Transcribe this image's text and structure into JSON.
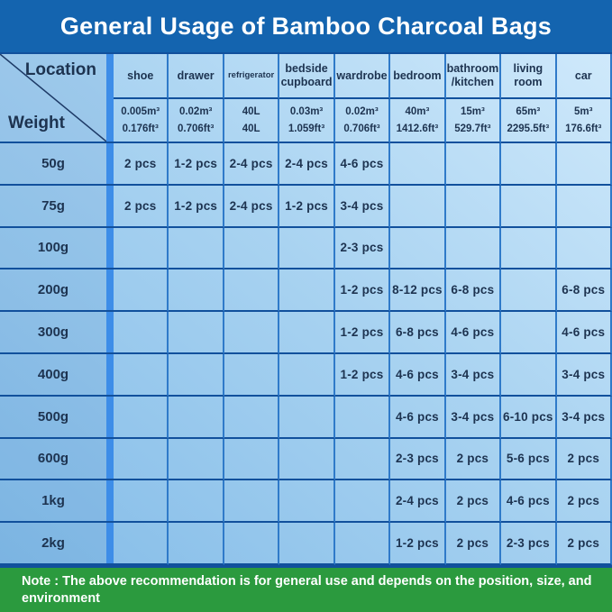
{
  "title_bar": {
    "title": "General Usage of Bamboo Charcoal Bags"
  },
  "chart_data": {
    "type": "table",
    "title": "General Usage of Bamboo Charcoal Bags",
    "corner": {
      "top_label": "Location",
      "bottom_label": "Weight"
    },
    "location_columns": [
      {
        "name": "shoe",
        "volume_metric": "0.005m³",
        "volume_imperial": "0.176ft³"
      },
      {
        "name": "drawer",
        "volume_metric": "0.02m³",
        "volume_imperial": "0.706ft³"
      },
      {
        "name": "refrigerator",
        "volume_metric": "40L",
        "volume_imperial": "40L"
      },
      {
        "name": "bedside cupboard",
        "volume_metric": "0.03m³",
        "volume_imperial": "1.059ft³"
      },
      {
        "name": "wardrobe",
        "volume_metric": "0.02m³",
        "volume_imperial": "0.706ft³"
      },
      {
        "name": "bedroom",
        "volume_metric": "40m³",
        "volume_imperial": "1412.6ft³"
      },
      {
        "name": "bathroom /kitchen",
        "volume_metric": "15m³",
        "volume_imperial": "529.7ft³"
      },
      {
        "name": "living room",
        "volume_metric": "65m³",
        "volume_imperial": "2295.5ft³"
      },
      {
        "name": "car",
        "volume_metric": "5m³",
        "volume_imperial": "176.6ft³"
      }
    ],
    "weight_rows": [
      {
        "weight": "50g",
        "cells": [
          "2 pcs",
          "1-2 pcs",
          "2-4 pcs",
          "2-4 pcs",
          "4-6 pcs",
          "",
          "",
          "",
          ""
        ]
      },
      {
        "weight": "75g",
        "cells": [
          "2 pcs",
          "1-2 pcs",
          "2-4 pcs",
          "1-2 pcs",
          "3-4 pcs",
          "",
          "",
          "",
          ""
        ]
      },
      {
        "weight": "100g",
        "cells": [
          "",
          "",
          "",
          "",
          "2-3 pcs",
          "",
          "",
          "",
          ""
        ]
      },
      {
        "weight": "200g",
        "cells": [
          "",
          "",
          "",
          "",
          "1-2 pcs",
          "8-12 pcs",
          "6-8 pcs",
          "",
          "6-8 pcs"
        ]
      },
      {
        "weight": "300g",
        "cells": [
          "",
          "",
          "",
          "",
          "1-2 pcs",
          "6-8 pcs",
          "4-6 pcs",
          "",
          "4-6 pcs"
        ]
      },
      {
        "weight": "400g",
        "cells": [
          "",
          "",
          "",
          "",
          "1-2 pcs",
          "4-6 pcs",
          "3-4 pcs",
          "",
          "3-4 pcs"
        ]
      },
      {
        "weight": "500g",
        "cells": [
          "",
          "",
          "",
          "",
          "",
          "4-6 pcs",
          "3-4 pcs",
          "6-10 pcs",
          "3-4 pcs"
        ]
      },
      {
        "weight": "600g",
        "cells": [
          "",
          "",
          "",
          "",
          "",
          "2-3 pcs",
          "2 pcs",
          "5-6 pcs",
          "2 pcs"
        ]
      },
      {
        "weight": "1kg",
        "cells": [
          "",
          "",
          "",
          "",
          "",
          "2-4 pcs",
          "2 pcs",
          "4-6 pcs",
          "2 pcs"
        ]
      },
      {
        "weight": "2kg",
        "cells": [
          "",
          "",
          "",
          "",
          "",
          "1-2 pcs",
          "2 pcs",
          "2-3 pcs",
          "2 pcs"
        ]
      }
    ],
    "note": "Note : The above recommendation is for general use and depends on the position, size, and environment"
  },
  "colors": {
    "title_bar_bg": "#1464af",
    "title_text": "#ffffff",
    "note_bar_bg": "#2b9a3e",
    "note_text": "#ffffff",
    "table_bg_dark": "#84bce8",
    "table_bg_light": "#cfe9fb",
    "separator_bar": "#3d8de8",
    "border_horizontal": "#11509c",
    "border_vertical": "#2f7ac9",
    "cell_text": "#1d3350"
  }
}
